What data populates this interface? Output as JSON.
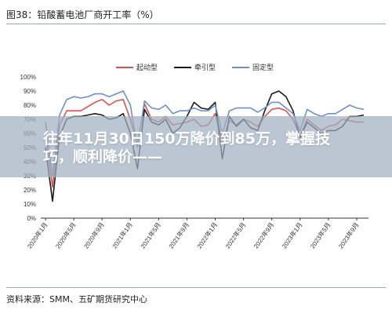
{
  "figure_title": "图38：铅酸蓄电池厂商开工率（%）",
  "source": "资料来源：SMM、五矿期货研究中心",
  "overlay_text": "往年11月30日150万降价到85万，掌握技巧，顺利降价——",
  "colors": {
    "series_1": "#d9534f",
    "series_2": "#1a1a1a",
    "series_3": "#6f8fc9",
    "overlay": "#a0b0c0"
  },
  "chart_data": {
    "type": "line",
    "title": "图38：铅酸蓄电池厂商开工率（%）",
    "xlabel": "",
    "ylabel": "",
    "ylim": [
      0,
      100
    ],
    "yticks": [
      "0%",
      "10%",
      "20%",
      "30%",
      "40%",
      "50%",
      "60%",
      "70%",
      "80%",
      "90%",
      "100%"
    ],
    "xticks": [
      "2020年1月",
      "2020年5月",
      "2020年9月",
      "2021年1月",
      "2021年5月",
      "2021年9月",
      "2022年1月",
      "2022年5月",
      "2022年9月",
      "2023年1月",
      "2023年5月",
      "2023年9月"
    ],
    "legend_position": "top-center",
    "grid": false,
    "x": [
      "2020-01",
      "2020-02",
      "2020-03",
      "2020-04",
      "2020-05",
      "2020-06",
      "2020-07",
      "2020-08",
      "2020-09",
      "2020-10",
      "2020-11",
      "2020-12",
      "2021-01",
      "2021-02",
      "2021-03",
      "2021-04",
      "2021-05",
      "2021-06",
      "2021-07",
      "2021-08",
      "2021-09",
      "2021-10",
      "2021-11",
      "2021-12",
      "2022-01",
      "2022-02",
      "2022-03",
      "2022-04",
      "2022-05",
      "2022-06",
      "2022-07",
      "2022-08",
      "2022-09",
      "2022-10",
      "2022-11",
      "2022-12",
      "2023-01",
      "2023-02",
      "2023-03",
      "2023-04",
      "2023-05",
      "2023-06",
      "2023-07",
      "2023-08",
      "2023-09",
      "2023-10"
    ],
    "series": [
      {
        "name": "起动型",
        "values": [
          60,
          22,
          66,
          76,
          76,
          76,
          79,
          82,
          84,
          80,
          83,
          84,
          70,
          52,
          81,
          70,
          68,
          72,
          66,
          67,
          68,
          70,
          65,
          66,
          74,
          55,
          69,
          66,
          70,
          68,
          65,
          72,
          77,
          78,
          76,
          70,
          58,
          70,
          66,
          62,
          65,
          66,
          70,
          69,
          68,
          68
        ]
      },
      {
        "name": "牵引型",
        "values": [
          50,
          12,
          58,
          70,
          72,
          72,
          73,
          74,
          73,
          70,
          71,
          74,
          60,
          35,
          77,
          68,
          66,
          70,
          60,
          64,
          72,
          82,
          78,
          77,
          82,
          42,
          72,
          65,
          70,
          64,
          62,
          76,
          88,
          90,
          86,
          76,
          57,
          68,
          64,
          60,
          62,
          62,
          65,
          72,
          72,
          73
        ]
      },
      {
        "name": "固定型",
        "values": [
          68,
          30,
          73,
          84,
          86,
          85,
          86,
          88,
          88,
          86,
          88,
          90,
          80,
          50,
          83,
          78,
          77,
          80,
          74,
          76,
          76,
          78,
          76,
          76,
          80,
          60,
          76,
          78,
          78,
          78,
          75,
          78,
          82,
          82,
          78,
          74,
          62,
          77,
          74,
          72,
          74,
          74,
          77,
          80,
          78,
          77
        ]
      }
    ]
  }
}
